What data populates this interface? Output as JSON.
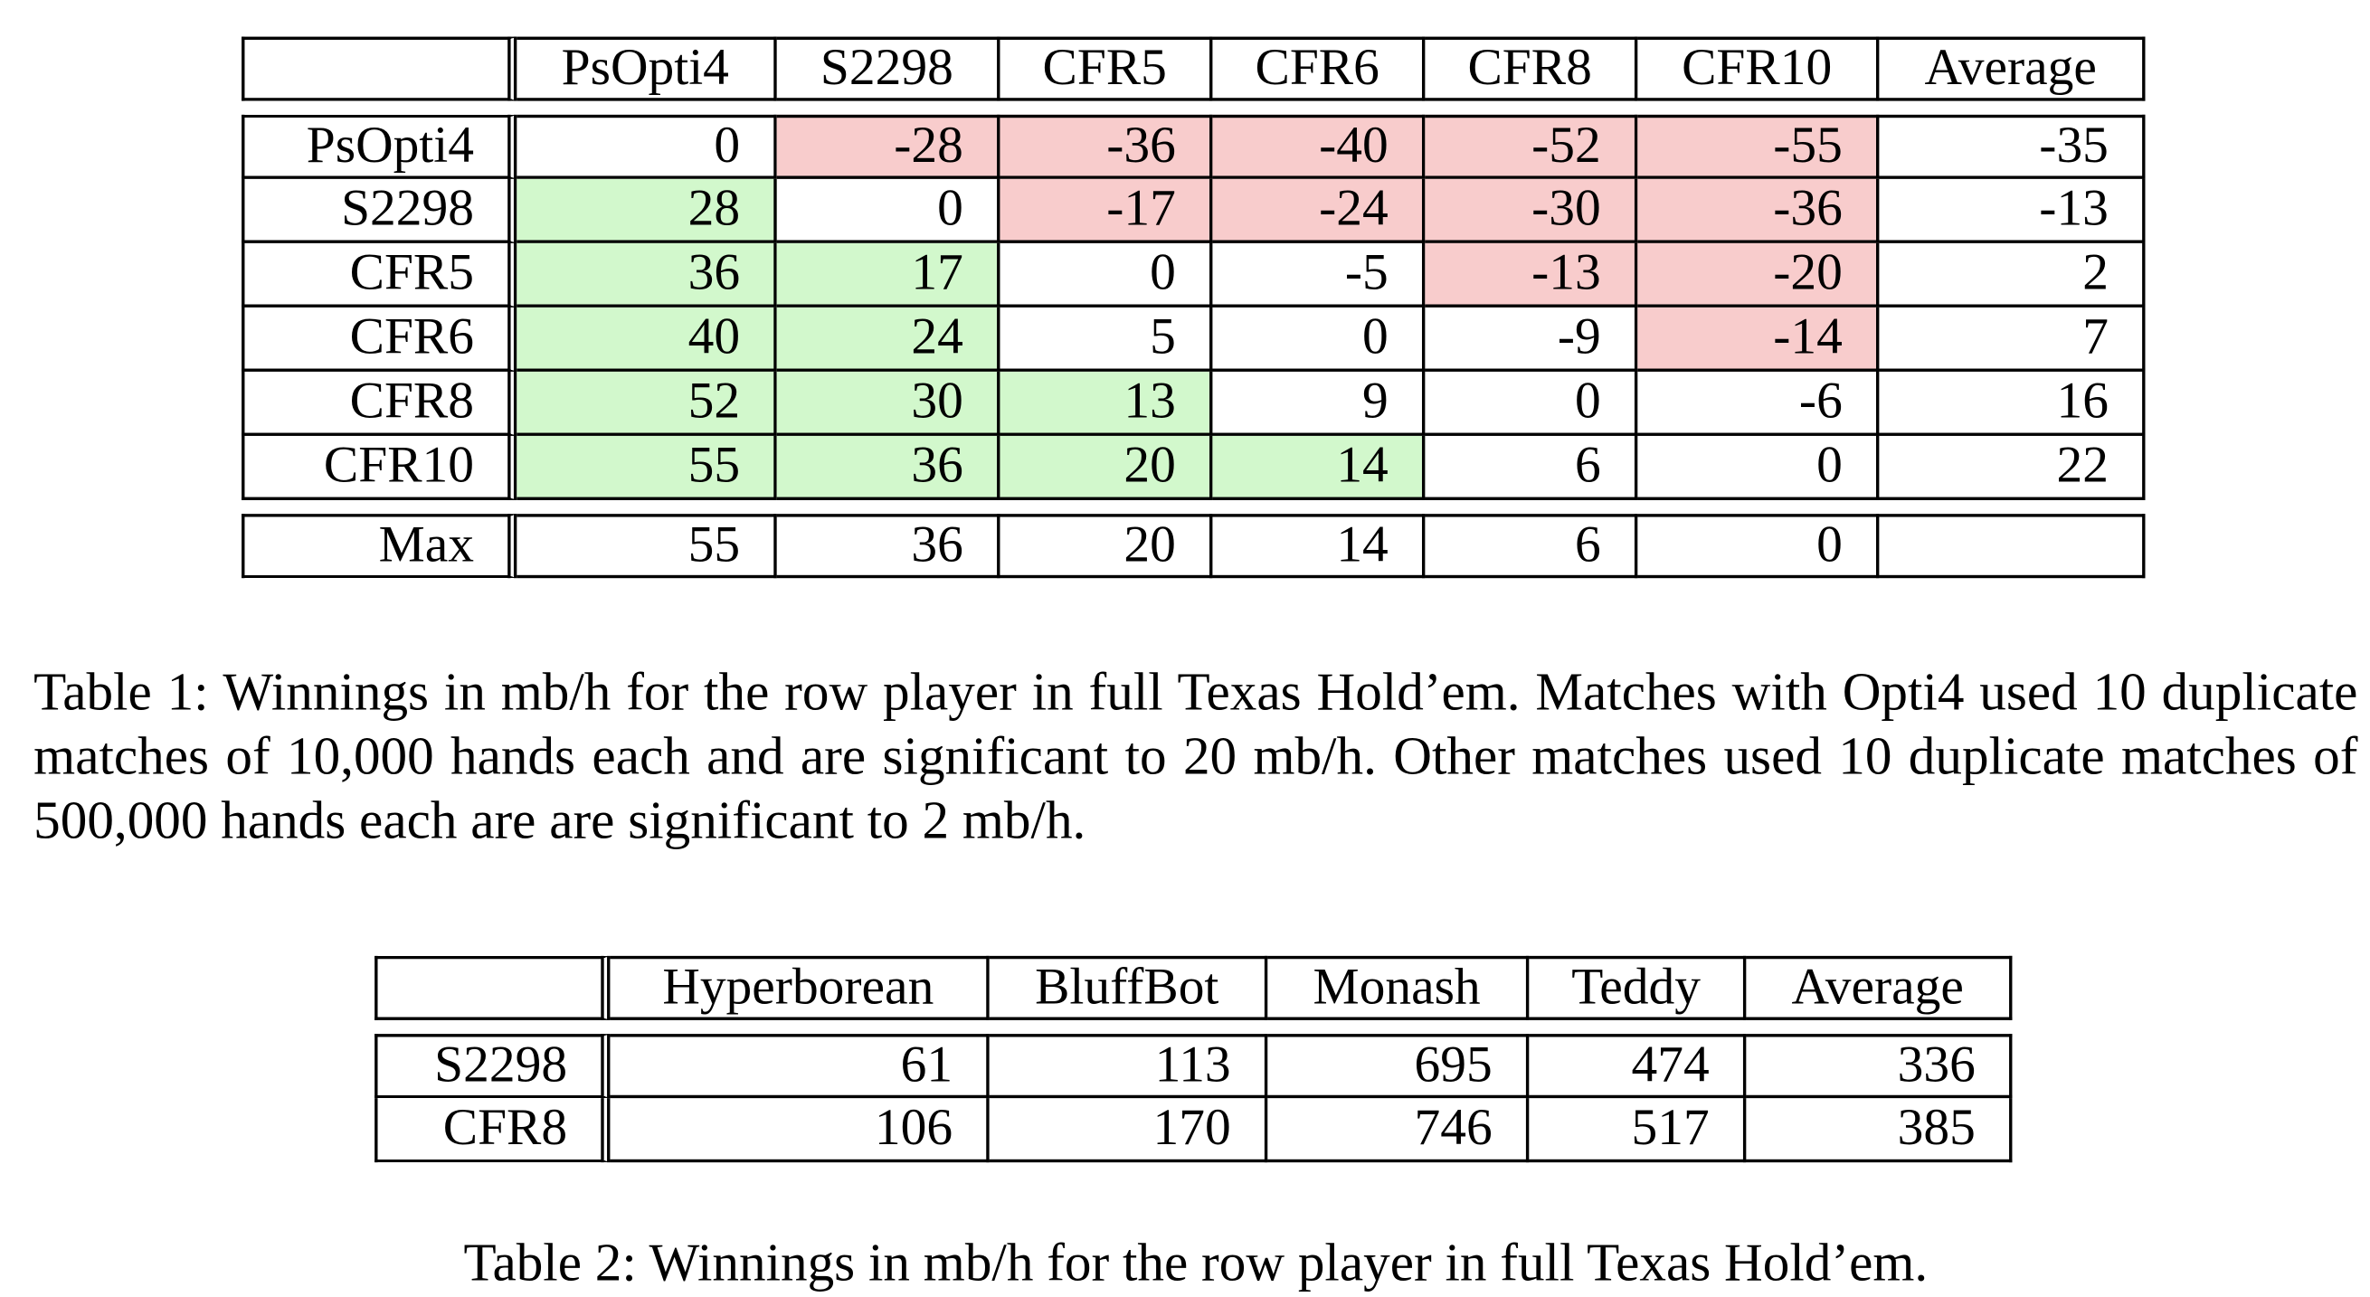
{
  "table1": {
    "columns": [
      "PsOpti4",
      "S2298",
      "CFR5",
      "CFR6",
      "CFR8",
      "CFR10",
      "Average"
    ],
    "rows": [
      {
        "label": "PsOpti4",
        "cells": [
          "0",
          "-28",
          "-36",
          "-40",
          "-52",
          "-55",
          "-35"
        ],
        "shading": [
          "",
          "neg",
          "neg",
          "neg",
          "neg",
          "neg",
          ""
        ]
      },
      {
        "label": "S2298",
        "cells": [
          "28",
          "0",
          "-17",
          "-24",
          "-30",
          "-36",
          "-13"
        ],
        "shading": [
          "pos",
          "",
          "neg",
          "neg",
          "neg",
          "neg",
          ""
        ]
      },
      {
        "label": "CFR5",
        "cells": [
          "36",
          "17",
          "0",
          "-5",
          "-13",
          "-20",
          "2"
        ],
        "shading": [
          "pos",
          "pos",
          "",
          "",
          "neg",
          "neg",
          ""
        ]
      },
      {
        "label": "CFR6",
        "cells": [
          "40",
          "24",
          "5",
          "0",
          "-9",
          "-14",
          "7"
        ],
        "shading": [
          "pos",
          "pos",
          "",
          "",
          "",
          "neg",
          ""
        ]
      },
      {
        "label": "CFR8",
        "cells": [
          "52",
          "30",
          "13",
          "9",
          "0",
          "-6",
          "16"
        ],
        "shading": [
          "pos",
          "pos",
          "pos",
          "",
          "",
          "",
          ""
        ]
      },
      {
        "label": "CFR10",
        "cells": [
          "55",
          "36",
          "20",
          "14",
          "6",
          "0",
          "22"
        ],
        "shading": [
          "pos",
          "pos",
          "pos",
          "pos",
          "",
          "",
          ""
        ]
      }
    ],
    "max_row": {
      "label": "Max",
      "cells": [
        "55",
        "36",
        "20",
        "14",
        "6",
        "0",
        ""
      ]
    },
    "caption": "Table 1: Winnings in mb/h for the row player in full Texas Hold’em. Matches with Opti4 used 10 duplicate matches of 10,000 hands each and are significant to  20 mb/h. Other matches used 10 duplicate matches of 500,000 hands each are are significant to  2 mb/h."
  },
  "table2": {
    "columns": [
      "Hyperborean",
      "BluffBot",
      "Monash",
      "Teddy",
      "Average"
    ],
    "rows": [
      {
        "label": "S2298",
        "cells": [
          "61",
          "113",
          "695",
          "474",
          "336"
        ]
      },
      {
        "label": "CFR8",
        "cells": [
          "106",
          "170",
          "746",
          "517",
          "385"
        ]
      }
    ],
    "caption": "Table 2: Winnings in mb/h for the row player in full Texas Hold’em."
  },
  "colors": {
    "negative_cell": "#f8cccc",
    "positive_cell": "#d2f8cc"
  }
}
